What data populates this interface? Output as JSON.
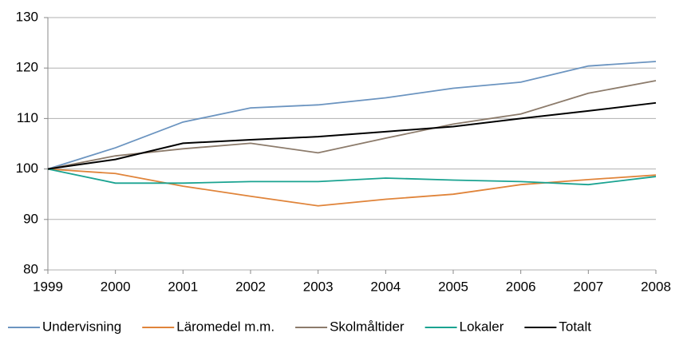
{
  "chart_data": {
    "type": "line",
    "x": [
      1999,
      2000,
      2001,
      2002,
      2003,
      2004,
      2005,
      2006,
      2007,
      2008
    ],
    "xlim": [
      1999,
      2008
    ],
    "xticks": [
      1999,
      2000,
      2001,
      2002,
      2003,
      2004,
      2005,
      2006,
      2007,
      2008
    ],
    "ylim": [
      80,
      130
    ],
    "yticks": [
      80,
      90,
      100,
      110,
      120,
      130
    ],
    "grid": true,
    "legend": "bottom",
    "series": [
      {
        "name": "Undervisning",
        "color": "#6b94c0",
        "values": [
          100,
          104.2,
          109.3,
          112.1,
          112.7,
          114.1,
          116.0,
          117.2,
          120.4,
          121.3
        ]
      },
      {
        "name": "Läromedel m.m.",
        "color": "#e0843a",
        "values": [
          100,
          99.1,
          96.6,
          94.6,
          92.7,
          94.0,
          95.0,
          96.9,
          97.9,
          98.8
        ]
      },
      {
        "name": "Skolmåltider",
        "color": "#8c7b6b",
        "values": [
          100,
          102.6,
          104.0,
          105.1,
          103.2,
          106.1,
          108.9,
          110.9,
          115.0,
          117.5
        ]
      },
      {
        "name": "Lokaler",
        "color": "#1aa391",
        "values": [
          100,
          97.2,
          97.2,
          97.5,
          97.5,
          98.2,
          97.8,
          97.5,
          96.9,
          98.5
        ]
      },
      {
        "name": "Totalt",
        "color": "#000000",
        "values": [
          100,
          101.9,
          105.1,
          105.8,
          106.4,
          107.4,
          108.4,
          110.0,
          111.5,
          113.1
        ]
      }
    ]
  }
}
